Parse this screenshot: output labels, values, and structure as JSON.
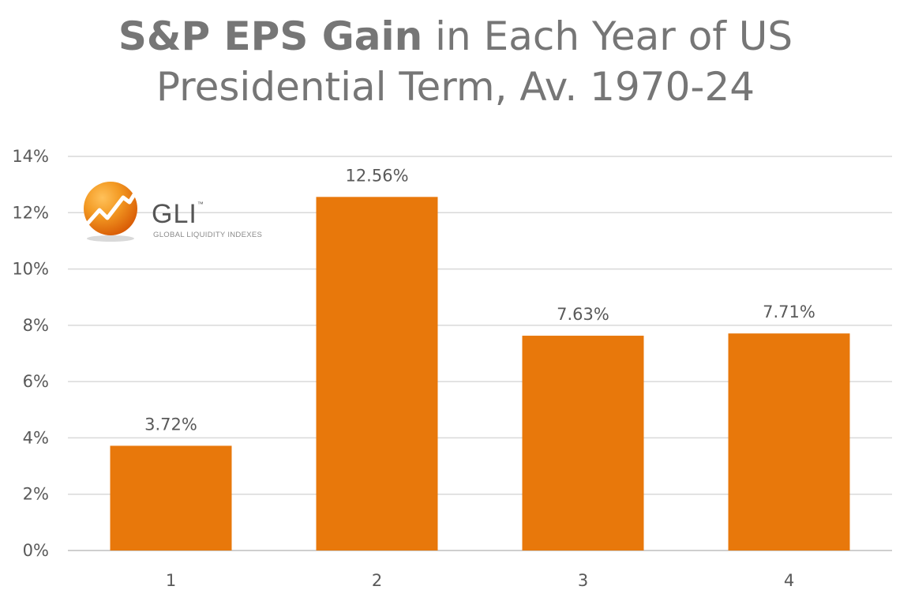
{
  "title": {
    "bold_part": "S&P EPS Gain",
    "rest_line1": " in Each Year of US",
    "line2": "Presidential Term, Av. 1970-24"
  },
  "logo": {
    "name": "GLI",
    "trademark": "™",
    "subtitle": "GLOBAL LIQUIDITY INDEXES"
  },
  "colors": {
    "bar": "#e8780b",
    "text": "#595959",
    "title": "#767676",
    "grid": "#d9d9d9"
  },
  "chart_data": {
    "type": "bar",
    "title": "S&P EPS Gain in Each Year of US Presidential Term, Av. 1970-24",
    "xlabel": "",
    "ylabel": "",
    "categories": [
      "1",
      "2",
      "3",
      "4"
    ],
    "values": [
      3.72,
      12.56,
      7.63,
      7.71
    ],
    "data_labels": [
      "3.72%",
      "12.56%",
      "7.63%",
      "7.71%"
    ],
    "ylim": [
      0,
      14
    ],
    "yticks": [
      0,
      2,
      4,
      6,
      8,
      10,
      12,
      14
    ],
    "ytick_labels": [
      "0%",
      "2%",
      "4%",
      "6%",
      "8%",
      "10%",
      "12%",
      "14%"
    ],
    "grid": true,
    "legend": "none"
  }
}
